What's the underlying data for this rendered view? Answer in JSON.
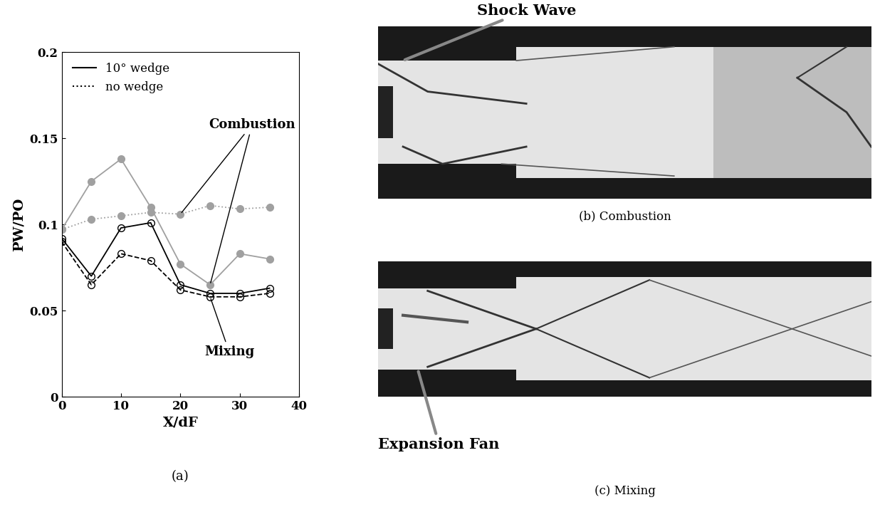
{
  "chart_data": {
    "type": "line",
    "x_label": "X/dF",
    "y_label": "PW/PO",
    "caption": "(a)",
    "x": [
      0,
      5,
      10,
      15,
      20,
      25,
      30,
      35
    ],
    "xlim": [
      0,
      40
    ],
    "xticks": [
      0,
      10,
      20,
      30,
      40
    ],
    "ylim": [
      0,
      0.2
    ],
    "yticks": [
      0,
      0.05,
      0.1,
      0.15,
      0.2
    ],
    "legend": "upper left",
    "series": [
      {
        "name": "10° wedge",
        "color": "#a0a0a0",
        "line_style": "solid",
        "marker": "filled_circle",
        "values": [
          0.097,
          0.125,
          0.138,
          0.11,
          0.077,
          0.065,
          0.083,
          0.08
        ]
      },
      {
        "name": "no wedge",
        "color": "#a0a0a0",
        "line_style": "dotted",
        "marker": "filled_circle",
        "values": [
          0.097,
          0.103,
          0.105,
          0.107,
          0.106,
          0.111,
          0.109,
          0.11
        ]
      },
      {
        "name": "10° wedge",
        "color": "#000000",
        "line_style": "solid",
        "marker": "open_circle",
        "values": [
          0.092,
          0.07,
          0.098,
          0.101,
          0.065,
          0.06,
          0.06,
          0.063
        ]
      },
      {
        "name": "no wedge",
        "color": "#000000",
        "line_style": "dashed",
        "marker": "open_circle",
        "values": [
          0.09,
          0.065,
          0.083,
          0.079,
          0.062,
          0.058,
          0.058,
          0.06
        ]
      }
    ],
    "annotations": [
      {
        "text": "Combustion"
      },
      {
        "text": "Mixing"
      }
    ]
  },
  "images": [
    {
      "caption": "(b) Combustion",
      "annotation": "Shock Wave"
    },
    {
      "caption": "(c) Mixing",
      "annotation": "Expansion Fan"
    }
  ]
}
